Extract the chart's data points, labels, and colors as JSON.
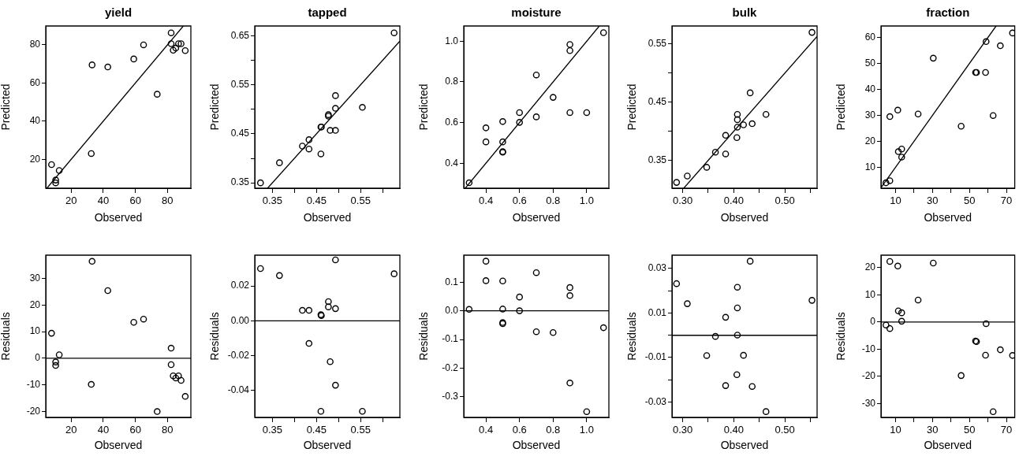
{
  "chart_data": [
    {
      "type": "scatter",
      "title": "yield",
      "xlabel": "Observed",
      "ylabel": "Predicted",
      "xlim": [
        4.1,
        94.6
      ],
      "xticks": [
        20,
        40,
        60,
        80
      ],
      "ylim": [
        4.8,
        89.9
      ],
      "yticks": [
        20,
        40,
        60,
        80
      ],
      "series": [
        {
          "type": "scatter",
          "marker": "circle",
          "color": "#000000",
          "x": [
            7.7,
            12.5,
            10.3,
            10.3,
            32.5,
            33.0,
            42.8,
            59.0,
            65.1,
            73.6,
            82.3,
            82.3,
            83.6,
            85.2,
            86.9,
            88.5,
            91.1
          ],
          "values": [
            17.2,
            14.1,
            9.1,
            7.6,
            23.0,
            69.5,
            68.4,
            72.6,
            80.0,
            54.1,
            86.3,
            80.6,
            77.2,
            78.3,
            80.6,
            80.6,
            77.0
          ]
        },
        {
          "type": "line",
          "color": "#000000",
          "x": [
            4.8,
            89.9
          ],
          "values": [
            4.8,
            89.9
          ]
        }
      ]
    },
    {
      "type": "scatter",
      "title": "tapped",
      "xlabel": "Observed",
      "ylabel": "Predicted",
      "xlim": [
        0.31,
        0.639
      ],
      "xticks": [
        0.35,
        {
          "value": 0.4,
          "label": null
        },
        0.45,
        {
          "value": 0.5,
          "label": null
        },
        0.55,
        {
          "value": 0.6,
          "label": null
        }
      ],
      "ylim": [
        0.339,
        0.67
      ],
      "yticks": [
        0.35,
        {
          "value": 0.4,
          "label": null
        },
        0.45,
        {
          "value": 0.5,
          "label": null
        },
        0.55,
        {
          "value": 0.6,
          "label": null
        },
        0.65
      ],
      "series": [
        {
          "type": "scatter",
          "marker": "circle",
          "color": "#000000",
          "x": [
            0.323,
            0.366,
            0.418,
            0.433,
            0.433,
            0.46,
            0.46,
            0.461,
            0.477,
            0.477,
            0.481,
            0.493,
            0.493,
            0.493,
            0.554,
            0.626
          ],
          "values": [
            0.35,
            0.391,
            0.425,
            0.438,
            0.419,
            0.409,
            0.464,
            0.464,
            0.489,
            0.486,
            0.457,
            0.457,
            0.502,
            0.528,
            0.504,
            0.656
          ]
        },
        {
          "type": "line",
          "color": "#000000",
          "x": [
            0.339,
            0.639
          ],
          "values": [
            0.339,
            0.639
          ]
        }
      ]
    },
    {
      "type": "scatter",
      "title": "moisture",
      "xlabel": "Observed",
      "ylabel": "Predicted",
      "xlim": [
        0.268,
        1.132
      ],
      "xticks": [
        0.4,
        0.6,
        0.8,
        {
          "value": 1,
          "label": "1.0"
        }
      ],
      "ylim": [
        0.277,
        1.075
      ],
      "yticks": [
        0.4,
        0.6,
        0.8,
        {
          "value": 1,
          "label": "1.0"
        }
      ],
      "series": [
        {
          "type": "scatter",
          "marker": "circle",
          "color": "#000000",
          "x": [
            0.3,
            0.4,
            0.4,
            0.5,
            0.5,
            0.5,
            0.5,
            0.6,
            0.6,
            0.7,
            0.7,
            0.8,
            0.9,
            0.9,
            0.9,
            1.0,
            1.1
          ],
          "values": [
            0.304,
            0.574,
            0.505,
            0.605,
            0.505,
            0.457,
            0.454,
            0.649,
            0.601,
            0.834,
            0.628,
            0.724,
            0.984,
            0.954,
            0.649,
            0.649,
            1.042
          ]
        },
        {
          "type": "line",
          "color": "#000000",
          "x": [
            0.277,
            1.075
          ],
          "values": [
            0.277,
            1.075
          ]
        }
      ]
    },
    {
      "type": "scatter",
      "title": "bulk",
      "xlabel": "Observed",
      "ylabel": "Predicted",
      "xlim": [
        0.279,
        0.563
      ],
      "xticks": [
        {
          "value": 0.3,
          "label": "0.30"
        },
        {
          "value": 0.35,
          "label": null
        },
        {
          "value": 0.4,
          "label": "0.40"
        },
        {
          "value": 0.45,
          "label": null
        },
        {
          "value": 0.5,
          "label": "0.50"
        },
        {
          "value": 0.55,
          "label": null
        }
      ],
      "ylim": [
        0.302,
        0.581
      ],
      "yticks": [
        0.35,
        {
          "value": 0.4,
          "label": null
        },
        0.45,
        {
          "value": 0.5,
          "label": null
        },
        0.55
      ],
      "series": [
        {
          "type": "scatter",
          "marker": "circle",
          "color": "#000000",
          "x": [
            0.288,
            0.309,
            0.347,
            0.364,
            0.384,
            0.384,
            0.406,
            0.407,
            0.407,
            0.407,
            0.419,
            0.436,
            0.432,
            0.463,
            0.553
          ],
          "values": [
            0.312,
            0.323,
            0.338,
            0.364,
            0.361,
            0.393,
            0.389,
            0.407,
            0.42,
            0.429,
            0.411,
            0.413,
            0.466,
            0.429,
            0.57
          ]
        },
        {
          "type": "line",
          "color": "#000000",
          "x": [
            0.302,
            0.563
          ],
          "values": [
            0.302,
            0.563
          ]
        }
      ]
    },
    {
      "type": "scatter",
      "title": "fraction",
      "xlabel": "Observed",
      "ylabel": "Predicted",
      "xlim": [
        2.1,
        74.5
      ],
      "xticks": [
        10,
        {
          "value": 20,
          "label": null
        },
        30,
        {
          "value": 40,
          "label": null
        },
        50,
        {
          "value": 60,
          "label": null
        },
        70
      ],
      "ylim": [
        1.9,
        64.4
      ],
      "yticks": [
        10,
        20,
        30,
        40,
        50,
        60
      ],
      "series": [
        {
          "type": "scatter",
          "marker": "circle",
          "color": "#000000",
          "x": [
            4.8,
            6.9,
            6.9,
            11.2,
            11.5,
            13.3,
            13.3,
            22.2,
            30.4,
            45.5,
            53.3,
            53.8,
            58.7,
            59.0,
            62.8,
            66.7,
            73.3
          ],
          "values": [
            4.0,
            4.8,
            29.5,
            32.0,
            16.0,
            17.0,
            13.9,
            30.5,
            52.0,
            25.8,
            46.5,
            46.5,
            46.5,
            58.4,
            29.9,
            56.8,
            61.7
          ]
        },
        {
          "type": "line",
          "color": "#000000",
          "x": [
            2.1,
            64.4
          ],
          "values": [
            2.1,
            64.4
          ]
        }
      ]
    },
    {
      "type": "scatter",
      "xlabel": "Observed",
      "ylabel": "Residuals",
      "xlim": [
        4.1,
        94.6
      ],
      "xticks": [
        20,
        40,
        60,
        80
      ],
      "ylim": [
        -22.2,
        38.7
      ],
      "yticks": [
        -20,
        -10,
        0,
        10,
        20,
        30
      ],
      "ref_lines": [
        {
          "axis": "y",
          "value": 0,
          "color": "#000000"
        }
      ],
      "series": [
        {
          "type": "scatter",
          "marker": "circle",
          "color": "#000000",
          "x": [
            7.7,
            12.5,
            10.3,
            10.3,
            32.5,
            33.0,
            42.8,
            59.0,
            65.1,
            73.6,
            82.3,
            82.3,
            83.6,
            85.2,
            86.9,
            88.5,
            91.1
          ],
          "values": [
            9.4,
            1.3,
            -1.4,
            -2.7,
            -9.8,
            36.4,
            25.4,
            13.5,
            14.7,
            -20.0,
            3.8,
            -2.4,
            -6.6,
            -7.4,
            -6.6,
            -8.3,
            -14.3
          ]
        }
      ]
    },
    {
      "type": "scatter",
      "xlabel": "Observed",
      "ylabel": "Residuals",
      "xlim": [
        0.31,
        0.639
      ],
      "xticks": [
        0.35,
        {
          "value": 0.4,
          "label": null
        },
        0.45,
        {
          "value": 0.5,
          "label": null
        },
        0.55,
        {
          "value": 0.6,
          "label": null
        }
      ],
      "ylim": [
        -0.0555,
        0.0377
      ],
      "yticks": [
        -0.04,
        -0.02,
        {
          "value": 0,
          "label": "0.00"
        },
        0.02
      ],
      "ref_lines": [
        {
          "axis": "y",
          "value": 0,
          "color": "#000000"
        }
      ],
      "series": [
        {
          "type": "scatter",
          "marker": "circle",
          "color": "#000000",
          "x": [
            0.323,
            0.366,
            0.418,
            0.433,
            0.433,
            0.46,
            0.46,
            0.461,
            0.477,
            0.477,
            0.481,
            0.493,
            0.493,
            0.493,
            0.554,
            0.626
          ],
          "values": [
            0.03,
            0.026,
            0.006,
            0.006,
            -0.013,
            -0.052,
            0.0035,
            0.003,
            0.011,
            0.008,
            -0.0235,
            -0.037,
            0.007,
            0.035,
            -0.052,
            0.027
          ]
        }
      ]
    },
    {
      "type": "scatter",
      "xlabel": "Observed",
      "ylabel": "Residuals",
      "xlim": [
        0.268,
        1.132
      ],
      "xticks": [
        0.4,
        0.6,
        0.8,
        {
          "value": 1,
          "label": "1.0"
        }
      ],
      "ylim": [
        -0.372,
        0.194
      ],
      "yticks": [
        -0.3,
        -0.2,
        -0.1,
        {
          "value": 0,
          "label": "0.0"
        },
        0.1
      ],
      "ref_lines": [
        {
          "axis": "y",
          "value": 0,
          "color": "#000000"
        }
      ],
      "series": [
        {
          "type": "scatter",
          "marker": "circle",
          "color": "#000000",
          "x": [
            0.3,
            0.4,
            0.4,
            0.5,
            0.5,
            0.5,
            0.5,
            0.6,
            0.6,
            0.7,
            0.7,
            0.8,
            0.9,
            0.9,
            0.9,
            1.0,
            1.1
          ],
          "values": [
            0.005,
            0.173,
            0.105,
            0.104,
            0.006,
            -0.041,
            -0.045,
            0.048,
            0.0,
            0.133,
            -0.073,
            -0.076,
            0.081,
            0.053,
            -0.252,
            -0.352,
            -0.059
          ]
        }
      ]
    },
    {
      "type": "scatter",
      "xlabel": "Observed",
      "ylabel": "Residuals",
      "xlim": [
        0.279,
        0.563
      ],
      "xticks": [
        {
          "value": 0.3,
          "label": "0.30"
        },
        {
          "value": 0.35,
          "label": null
        },
        {
          "value": 0.4,
          "label": "0.40"
        },
        {
          "value": 0.45,
          "label": null
        },
        {
          "value": 0.5,
          "label": "0.50"
        },
        {
          "value": 0.55,
          "label": null
        }
      ],
      "ylim": [
        -0.0369,
        0.036
      ],
      "yticks": [
        -0.03,
        {
          "value": -0.02,
          "label": null
        },
        -0.01,
        {
          "value": 0,
          "label": null
        },
        0.01,
        {
          "value": 0.02,
          "label": null
        },
        0.03
      ],
      "ref_lines": [
        {
          "axis": "y",
          "value": 0,
          "color": "#000000"
        }
      ],
      "series": [
        {
          "type": "scatter",
          "marker": "circle",
          "color": "#000000",
          "x": [
            0.288,
            0.309,
            0.347,
            0.364,
            0.384,
            0.384,
            0.406,
            0.407,
            0.407,
            0.407,
            0.419,
            0.436,
            0.432,
            0.463,
            0.553
          ],
          "values": [
            0.0232,
            0.0142,
            -0.0091,
            -0.0005,
            -0.0226,
            0.0081,
            -0.0177,
            0.0001,
            0.0123,
            0.0216,
            -0.009,
            -0.023,
            0.0333,
            -0.0343,
            0.0157
          ]
        }
      ]
    },
    {
      "type": "scatter",
      "xlabel": "Observed",
      "ylabel": "Residuals",
      "xlim": [
        2.1,
        74.5
      ],
      "xticks": [
        10,
        {
          "value": 20,
          "label": null
        },
        30,
        {
          "value": 40,
          "label": null
        },
        50,
        {
          "value": 60,
          "label": null
        },
        70
      ],
      "ylim": [
        -35.1,
        24.6
      ],
      "yticks": [
        -30,
        -20,
        -10,
        0,
        10,
        20
      ],
      "ref_lines": [
        {
          "axis": "y",
          "value": 0,
          "color": "#000000"
        }
      ],
      "series": [
        {
          "type": "scatter",
          "marker": "circle",
          "color": "#000000",
          "x": [
            4.8,
            6.9,
            6.9,
            11.2,
            11.5,
            13.3,
            13.3,
            22.2,
            30.4,
            45.5,
            53.3,
            53.8,
            58.7,
            59.0,
            62.8,
            66.7,
            73.3
          ],
          "values": [
            -1.1,
            -2.4,
            22.3,
            20.6,
            4.1,
            3.4,
            0.3,
            8.1,
            21.7,
            -19.7,
            -7.0,
            -7.2,
            -12.2,
            -0.6,
            -33.0,
            -10.2,
            -12.3
          ]
        }
      ]
    }
  ]
}
